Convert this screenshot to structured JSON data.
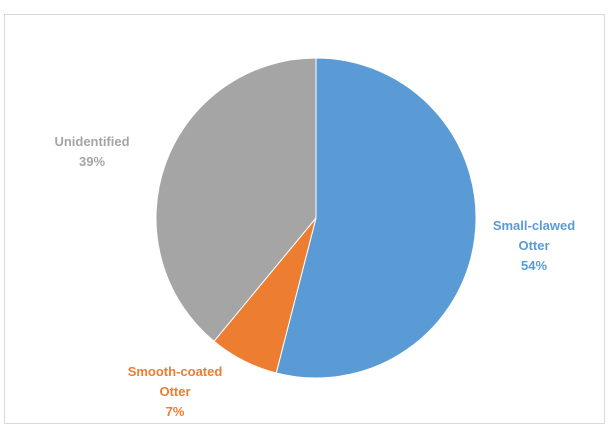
{
  "chart_data": {
    "type": "pie",
    "title": "",
    "categories": [
      "Small-clawed Otter",
      "Smooth-coated Otter",
      "Unidentified"
    ],
    "values": [
      54,
      7,
      39
    ],
    "value_labels": [
      "54%",
      "7%",
      "39%"
    ],
    "label_lines": [
      [
        "Small-clawed",
        "Otter",
        "54%"
      ],
      [
        "Smooth-coated",
        "Otter",
        "7%"
      ],
      [
        "Unidentified",
        "39%"
      ]
    ],
    "colors": [
      "#5b9bd5",
      "#ed7d31",
      "#a5a5a5"
    ],
    "legend": "none",
    "start_angle_deg": 0,
    "direction": "clockwise"
  }
}
